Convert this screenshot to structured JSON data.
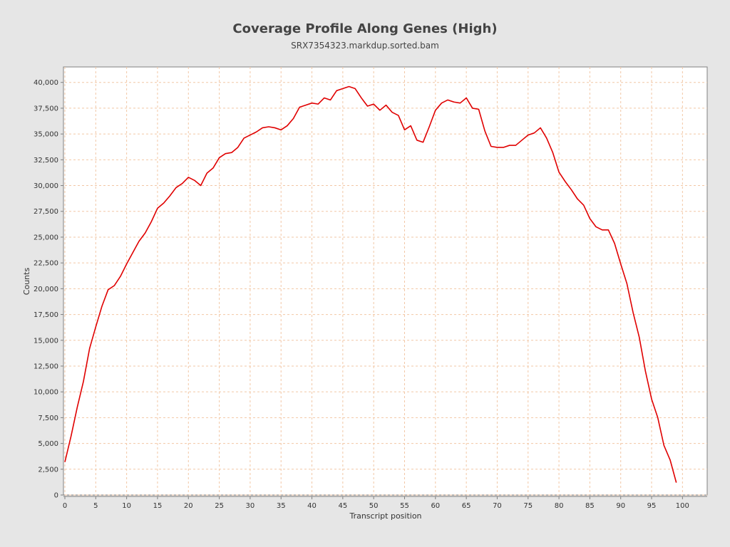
{
  "chart_data": {
    "type": "line",
    "title": "Coverage Profile Along Genes (High)",
    "subtitle": "SRX7354323.markdup.sorted.bam",
    "xlabel": "Transcript position",
    "ylabel": "Counts",
    "xlim": [
      0,
      104
    ],
    "ylim": [
      0,
      41500
    ],
    "x_ticks": [
      0,
      5,
      10,
      15,
      20,
      25,
      30,
      35,
      40,
      45,
      50,
      55,
      60,
      65,
      70,
      75,
      80,
      85,
      90,
      95,
      100
    ],
    "y_ticks": [
      0,
      2500,
      5000,
      7500,
      10000,
      12500,
      15000,
      17500,
      20000,
      22500,
      25000,
      27500,
      30000,
      32500,
      35000,
      37500,
      40000
    ],
    "y_tick_labels": [
      "0",
      "2,500",
      "5,000",
      "7,500",
      "10,000",
      "12,500",
      "15,000",
      "17,500",
      "20,000",
      "22,500",
      "25,000",
      "27,500",
      "30,000",
      "32,500",
      "35,000",
      "37,500",
      "40,000"
    ],
    "grid": true,
    "series": [
      {
        "color": "#e00000",
        "x": [
          0,
          1,
          2,
          3,
          4,
          5,
          6,
          7,
          8,
          9,
          10,
          11,
          12,
          13,
          14,
          15,
          16,
          17,
          18,
          19,
          20,
          21,
          22,
          23,
          24,
          25,
          26,
          27,
          28,
          29,
          30,
          31,
          32,
          33,
          34,
          35,
          36,
          37,
          38,
          39,
          40,
          41,
          42,
          43,
          44,
          45,
          46,
          47,
          48,
          49,
          50,
          51,
          52,
          53,
          54,
          55,
          56,
          57,
          58,
          59,
          60,
          61,
          62,
          63,
          64,
          65,
          66,
          67,
          68,
          69,
          70,
          71,
          72,
          73,
          74,
          75,
          76,
          77,
          78,
          79,
          80,
          81,
          82,
          83,
          84,
          85,
          86,
          87,
          88,
          89,
          90,
          91,
          92,
          93,
          94,
          95,
          96,
          97,
          98,
          99
        ],
        "values": [
          3200,
          5700,
          8500,
          11000,
          14200,
          16300,
          18300,
          19900,
          20300,
          21200,
          22400,
          23500,
          24600,
          25400,
          26500,
          27800,
          28300,
          29000,
          29800,
          30200,
          30800,
          30500,
          30000,
          31200,
          31700,
          32700,
          33100,
          33200,
          33700,
          34600,
          34900,
          35200,
          35600,
          35700,
          35600,
          35400,
          35800,
          36500,
          37600,
          37800,
          38000,
          37900,
          38500,
          38300,
          39200,
          39400,
          39600,
          39400,
          38500,
          37700,
          37900,
          37300,
          37800,
          37100,
          36800,
          35400,
          35800,
          34400,
          34200,
          35700,
          37300,
          38000,
          38300,
          38100,
          38000,
          38500,
          37500,
          37400,
          35300,
          33800,
          33700,
          33700,
          33900,
          33900,
          34400,
          34900,
          35100,
          35600,
          34600,
          33200,
          31300,
          30400,
          29600,
          28700,
          28100,
          26800,
          26000,
          25700,
          25700,
          24400,
          22400,
          20500,
          17700,
          15300,
          12000,
          9300,
          7500,
          4800,
          3400,
          1200
        ]
      }
    ]
  }
}
